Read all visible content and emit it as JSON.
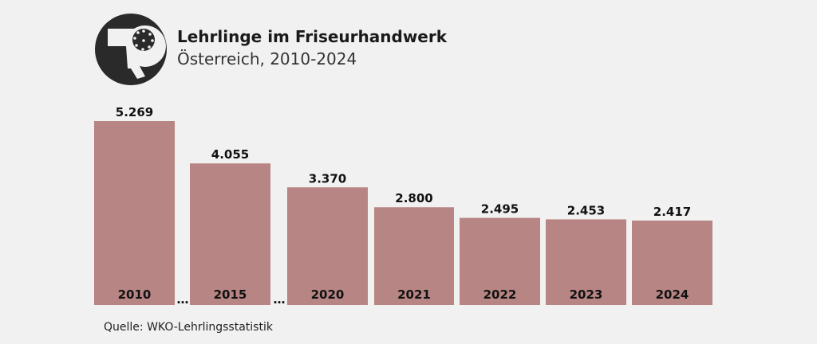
{
  "header": {
    "title": "Lehrlinge im Friseurhandwerk",
    "subtitle": "Österreich, 2010-2024",
    "icon": "hair-dryer-icon"
  },
  "chart_data": {
    "type": "bar",
    "categories": [
      "2010",
      "2015",
      "2020",
      "2021",
      "2022",
      "2023",
      "2024"
    ],
    "values": [
      5269,
      4055,
      3370,
      2800,
      2495,
      2453,
      2417
    ],
    "value_labels": [
      "5.269",
      "4.055",
      "3.370",
      "2.800",
      "2.495",
      "2.453",
      "2.417"
    ],
    "axis_breaks": [
      "…",
      "…"
    ],
    "bar_color": "#b78583",
    "grid": false,
    "legend": "none"
  },
  "footer": {
    "source": "Quelle: WKO-Lehrlingsstatistik"
  }
}
